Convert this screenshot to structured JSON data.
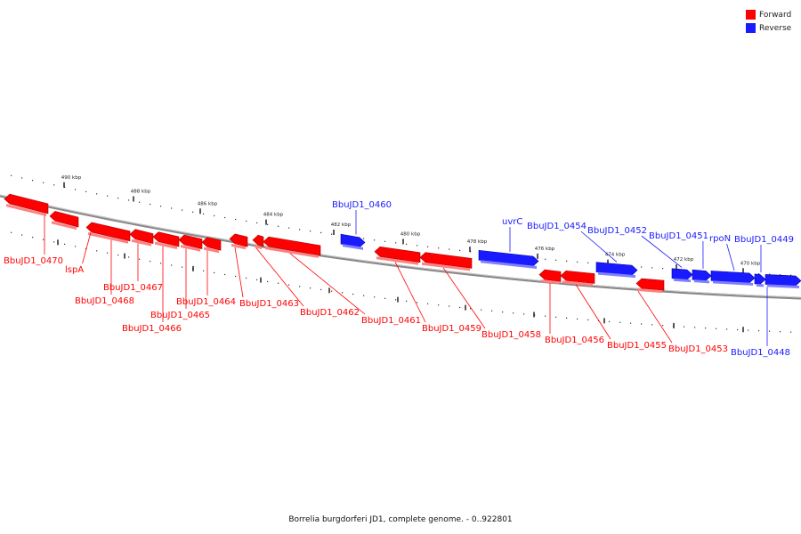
{
  "legend": {
    "forward": {
      "label": "Forward",
      "color": "#ff0000"
    },
    "reverse": {
      "label": "Reverse",
      "color": "#1a1aff"
    }
  },
  "footer": "Borrelia burgdorferi JD1, complete genome. - 0..922801",
  "scale": {
    "major_ticks": [
      "490 kbp",
      "488 kbp",
      "486 kbp",
      "484 kbp",
      "482 kbp",
      "480 kbp",
      "478 kbp",
      "476 kbp",
      "474 kbp",
      "472 kbp",
      "470 kbp"
    ]
  },
  "genes": [
    {
      "name": "BbuJD1_0470",
      "strand": "forward"
    },
    {
      "name": "lspA",
      "strand": "forward"
    },
    {
      "name": "BbuJD1_0468",
      "strand": "forward"
    },
    {
      "name": "BbuJD1_0467",
      "strand": "forward"
    },
    {
      "name": "BbuJD1_0466",
      "strand": "forward"
    },
    {
      "name": "BbuJD1_0465",
      "strand": "forward"
    },
    {
      "name": "BbuJD1_0464",
      "strand": "forward"
    },
    {
      "name": "BbuJD1_0463",
      "strand": "forward"
    },
    {
      "name": "BbuJD1_0462",
      "strand": "forward"
    },
    {
      "name": "BbuJD1_0461",
      "strand": "forward"
    },
    {
      "name": "BbuJD1_0460",
      "strand": "reverse"
    },
    {
      "name": "BbuJD1_0459",
      "strand": "forward"
    },
    {
      "name": "BbuJD1_0458",
      "strand": "forward"
    },
    {
      "name": "uvrC",
      "strand": "reverse"
    },
    {
      "name": "BbuJD1_0456",
      "strand": "forward"
    },
    {
      "name": "BbuJD1_0455",
      "strand": "forward"
    },
    {
      "name": "BbuJD1_0454",
      "strand": "reverse"
    },
    {
      "name": "BbuJD1_0453",
      "strand": "forward"
    },
    {
      "name": "BbuJD1_0452",
      "strand": "reverse"
    },
    {
      "name": "BbuJD1_0451",
      "strand": "reverse"
    },
    {
      "name": "rpoN",
      "strand": "reverse"
    },
    {
      "name": "BbuJD1_0449",
      "strand": "reverse"
    },
    {
      "name": "BbuJD1_0448",
      "strand": "reverse"
    }
  ]
}
